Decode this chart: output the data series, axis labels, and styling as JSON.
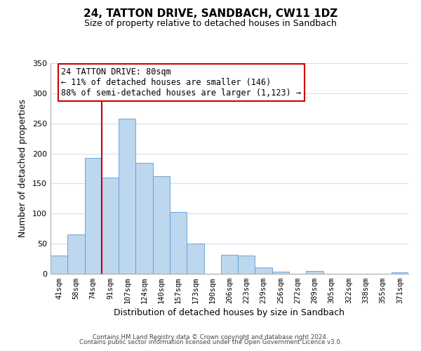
{
  "title": "24, TATTON DRIVE, SANDBACH, CW11 1DZ",
  "subtitle": "Size of property relative to detached houses in Sandbach",
  "xlabel": "Distribution of detached houses by size in Sandbach",
  "ylabel": "Number of detached properties",
  "bar_color": "#bdd7ee",
  "bar_edge_color": "#5b9bd5",
  "categories": [
    "41sqm",
    "58sqm",
    "74sqm",
    "91sqm",
    "107sqm",
    "124sqm",
    "140sqm",
    "157sqm",
    "173sqm",
    "190sqm",
    "206sqm",
    "223sqm",
    "239sqm",
    "256sqm",
    "272sqm",
    "289sqm",
    "305sqm",
    "322sqm",
    "338sqm",
    "355sqm",
    "371sqm"
  ],
  "values": [
    30,
    65,
    193,
    160,
    258,
    184,
    162,
    103,
    50,
    0,
    32,
    30,
    11,
    3,
    0,
    5,
    0,
    0,
    0,
    0,
    2
  ],
  "vline_x_index": 2,
  "vline_color": "#cc0000",
  "annotation_title": "24 TATTON DRIVE: 80sqm",
  "annotation_line1": "← 11% of detached houses are smaller (146)",
  "annotation_line2": "88% of semi-detached houses are larger (1,123) →",
  "annotation_box_color": "#ffffff",
  "annotation_box_edge": "#cc0000",
  "ylim": [
    0,
    350
  ],
  "yticks": [
    0,
    50,
    100,
    150,
    200,
    250,
    300,
    350
  ],
  "footer1": "Contains HM Land Registry data © Crown copyright and database right 2024.",
  "footer2": "Contains public sector information licensed under the Open Government Licence v3.0.",
  "background_color": "#ffffff",
  "grid_color": "#d0dce8"
}
